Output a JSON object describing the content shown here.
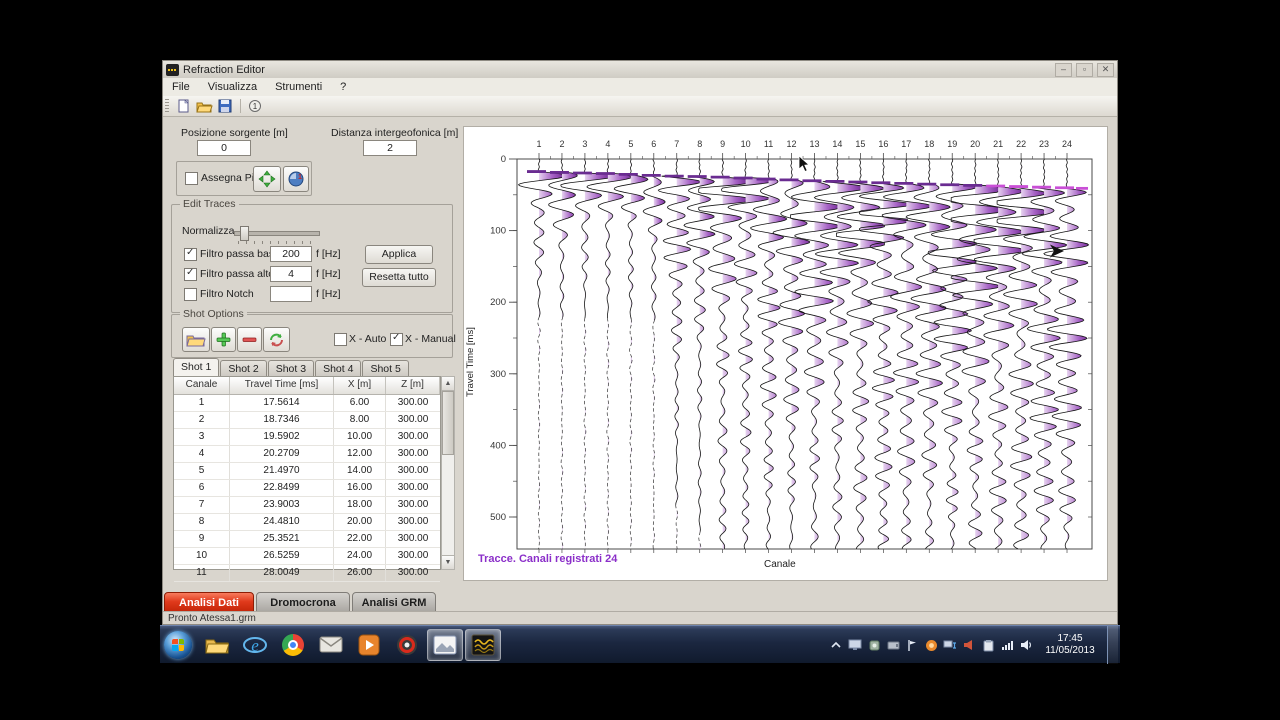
{
  "window": {
    "title": "Refraction Editor",
    "menus": [
      "File",
      "Visualizza",
      "Strumenti",
      "?"
    ],
    "controls": {
      "minimize": "–",
      "maximize": "▫",
      "close": "✕"
    }
  },
  "fields": {
    "posizione": {
      "label": "Posizione sorgente [m]",
      "value": "0"
    },
    "distanza": {
      "label": "Distanza intergeofonica [m]",
      "value": "2"
    }
  },
  "assegna_pick": {
    "label": "Assegna Pick",
    "checked": false
  },
  "edit_traces": {
    "title": "Edit Traces",
    "normalizza": "Normalizza",
    "filters": [
      {
        "label": "Filtro passa basso",
        "value": "200",
        "unit": "f [Hz]",
        "checked": true
      },
      {
        "label": "Filtro passa alto",
        "value": "4",
        "unit": "f [Hz]",
        "checked": true
      },
      {
        "label": "Filtro Notch",
        "value": "",
        "unit": "f [Hz]",
        "checked": false
      }
    ],
    "applica": "Applica",
    "resetta": "Resetta tutto"
  },
  "shot_options": {
    "title": "Shot Options",
    "x_auto": {
      "label": "X - Auto",
      "checked": false
    },
    "x_manual": {
      "label": "X - Manual",
      "checked": true
    },
    "tabs": [
      "Shot 1",
      "Shot 2",
      "Shot 3",
      "Shot 4",
      "Shot 5"
    ],
    "active_tab": "Shot 1"
  },
  "table": {
    "headers": [
      "Canale",
      "Travel Time [ms]",
      "X [m]",
      "Z [m]"
    ],
    "rows": [
      [
        "1",
        "17.5614",
        "6.00",
        "300.00"
      ],
      [
        "2",
        "18.7346",
        "8.00",
        "300.00"
      ],
      [
        "3",
        "19.5902",
        "10.00",
        "300.00"
      ],
      [
        "4",
        "20.2709",
        "12.00",
        "300.00"
      ],
      [
        "5",
        "21.4970",
        "14.00",
        "300.00"
      ],
      [
        "6",
        "22.8499",
        "16.00",
        "300.00"
      ],
      [
        "7",
        "23.9003",
        "18.00",
        "300.00"
      ],
      [
        "8",
        "24.4810",
        "20.00",
        "300.00"
      ],
      [
        "9",
        "25.3521",
        "22.00",
        "300.00"
      ],
      [
        "10",
        "26.5259",
        "24.00",
        "300.00"
      ],
      [
        "11",
        "28.0049",
        "26.00",
        "300.00"
      ]
    ]
  },
  "bottom_tabs": [
    {
      "label": "Analisi Dati",
      "active": true
    },
    {
      "label": "Dromocrona",
      "active": false
    },
    {
      "label": "Analisi GRM",
      "active": false
    }
  ],
  "status": "Pronto Atessa1.grm",
  "plot": {
    "note": "Tracce. Canali registrati 24",
    "xlabel": "Canale",
    "ylabel": "Travel Time [ms]",
    "channels": [
      1,
      2,
      3,
      4,
      5,
      6,
      7,
      8,
      9,
      10,
      11,
      12,
      13,
      14,
      15,
      16,
      17,
      18,
      19,
      20,
      21,
      22,
      23,
      24
    ],
    "y_ticks": [
      0,
      100,
      200,
      300,
      400,
      500
    ],
    "ylim": [
      0,
      545
    ],
    "picks_ms": [
      17.5614,
      18.7346,
      19.5902,
      20.2709,
      21.497,
      22.8499,
      23.9003,
      24.481,
      25.3521,
      26.5259,
      28.0049,
      29.2,
      30.4,
      31.3,
      32.1,
      33.2,
      34.0,
      35.1,
      36.0,
      36.8,
      37.7,
      38.5,
      39.4,
      40.2
    ],
    "colors": {
      "pick": "#6a2c91",
      "pick_bright": "#c94fd6",
      "trace_stroke": "#161616",
      "fill_stops": [
        "#e6d2ef",
        "#a763c6",
        "#78309a"
      ],
      "note_color": "#8b2fc9"
    }
  },
  "taskbar": {
    "apps": [
      {
        "name": "start-button",
        "active": false
      },
      {
        "name": "explorer-icon",
        "active": false
      },
      {
        "name": "internet-explorer-icon",
        "active": false
      },
      {
        "name": "chrome-icon",
        "active": false
      },
      {
        "name": "mail-icon",
        "active": false
      },
      {
        "name": "media-player-icon",
        "active": false
      },
      {
        "name": "recorder-icon",
        "active": false
      },
      {
        "name": "image-viewer-window",
        "active": true
      },
      {
        "name": "refraction-editor-window",
        "active": true
      }
    ],
    "tray_icons": [
      "hidden-icons-chevron",
      "display-icon",
      "device-icon",
      "storage-icon",
      "flag-icon",
      "update-orb-icon",
      "network-icon",
      "announce-icon",
      "clipboard-icon",
      "signal-bars-icon",
      "volume-icon"
    ],
    "clock": {
      "time": "17:45",
      "date": "11/05/2013"
    }
  }
}
